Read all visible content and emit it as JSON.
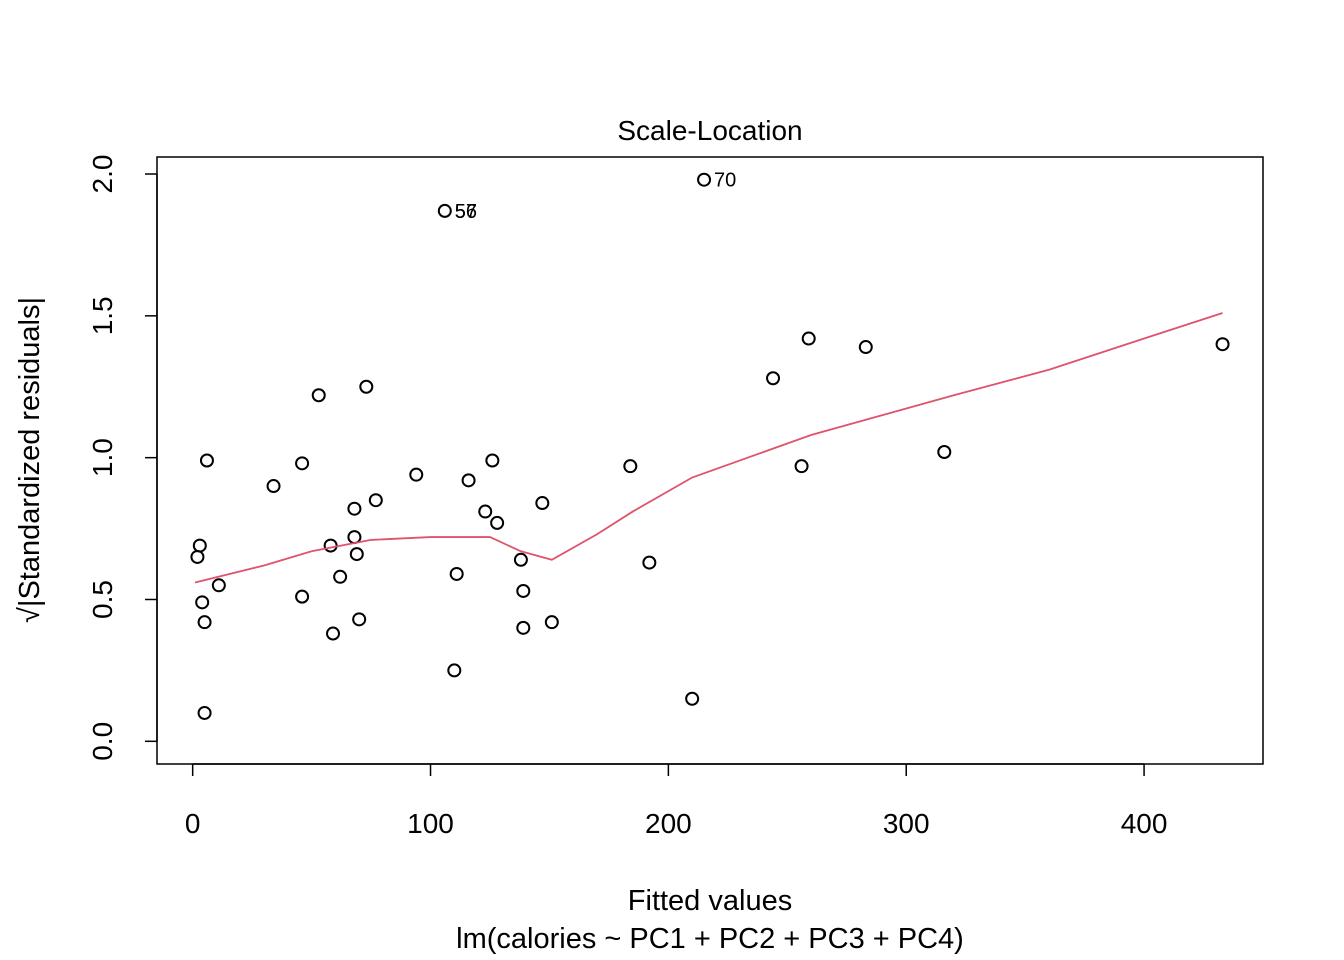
{
  "chart_data": {
    "type": "scatter",
    "title": "Scale-Location",
    "xlabel": "Fitted values",
    "subtitle": "lm(calories ~ PC1 + PC2 + PC3 + PC4)",
    "ylabel": "√|Standardized residuals|",
    "xlim": [
      -15,
      450
    ],
    "ylim": [
      -0.08,
      2.06
    ],
    "x_ticks": [
      0,
      100,
      200,
      300,
      400
    ],
    "y_ticks": [
      0.0,
      0.5,
      1.0,
      1.5,
      2.0
    ],
    "x_tick_labels": [
      "0",
      "100",
      "200",
      "300",
      "400"
    ],
    "y_tick_labels": [
      "0.0",
      "0.5",
      "1.0",
      "1.5",
      "2.0"
    ],
    "grid": false,
    "points": [
      {
        "x": 2,
        "y": 0.65
      },
      {
        "x": 3,
        "y": 0.69
      },
      {
        "x": 4,
        "y": 0.49
      },
      {
        "x": 5,
        "y": 0.42
      },
      {
        "x": 5,
        "y": 0.1
      },
      {
        "x": 6,
        "y": 0.99
      },
      {
        "x": 11,
        "y": 0.55
      },
      {
        "x": 34,
        "y": 0.9
      },
      {
        "x": 46,
        "y": 0.98
      },
      {
        "x": 46,
        "y": 0.51
      },
      {
        "x": 53,
        "y": 1.22
      },
      {
        "x": 58,
        "y": 0.69
      },
      {
        "x": 59,
        "y": 0.38
      },
      {
        "x": 62,
        "y": 0.58
      },
      {
        "x": 68,
        "y": 0.82
      },
      {
        "x": 68,
        "y": 0.72
      },
      {
        "x": 69,
        "y": 0.66
      },
      {
        "x": 70,
        "y": 0.43
      },
      {
        "x": 73,
        "y": 1.25
      },
      {
        "x": 77,
        "y": 0.85
      },
      {
        "x": 94,
        "y": 0.94
      },
      {
        "x": 106,
        "y": 1.87
      },
      {
        "x": 110,
        "y": 0.25
      },
      {
        "x": 111,
        "y": 0.59
      },
      {
        "x": 116,
        "y": 0.92
      },
      {
        "x": 123,
        "y": 0.81
      },
      {
        "x": 126,
        "y": 0.99
      },
      {
        "x": 128,
        "y": 0.77
      },
      {
        "x": 138,
        "y": 0.64
      },
      {
        "x": 139,
        "y": 0.53
      },
      {
        "x": 139,
        "y": 0.4
      },
      {
        "x": 147,
        "y": 0.84
      },
      {
        "x": 151,
        "y": 0.42
      },
      {
        "x": 184,
        "y": 0.97
      },
      {
        "x": 192,
        "y": 0.63
      },
      {
        "x": 210,
        "y": 0.15
      },
      {
        "x": 215,
        "y": 1.98
      },
      {
        "x": 244,
        "y": 1.28
      },
      {
        "x": 256,
        "y": 0.97
      },
      {
        "x": 259,
        "y": 1.42
      },
      {
        "x": 283,
        "y": 1.39
      },
      {
        "x": 316,
        "y": 1.02
      },
      {
        "x": 433,
        "y": 1.4
      }
    ],
    "annotations": [
      {
        "text": "57",
        "x": 106,
        "y": 1.87
      },
      {
        "text": "56",
        "x": 106,
        "y": 1.87
      },
      {
        "text": "70",
        "x": 215,
        "y": 1.98
      }
    ],
    "smooth_line": {
      "color": "#DF536B",
      "x": [
        1,
        30,
        50,
        75,
        100,
        125,
        138,
        151,
        170,
        185,
        210,
        240,
        260,
        290,
        320,
        360,
        400,
        433
      ],
      "y": [
        0.56,
        0.62,
        0.67,
        0.71,
        0.72,
        0.72,
        0.67,
        0.64,
        0.73,
        0.81,
        0.93,
        1.02,
        1.08,
        1.15,
        1.22,
        1.31,
        1.42,
        1.51
      ]
    }
  }
}
